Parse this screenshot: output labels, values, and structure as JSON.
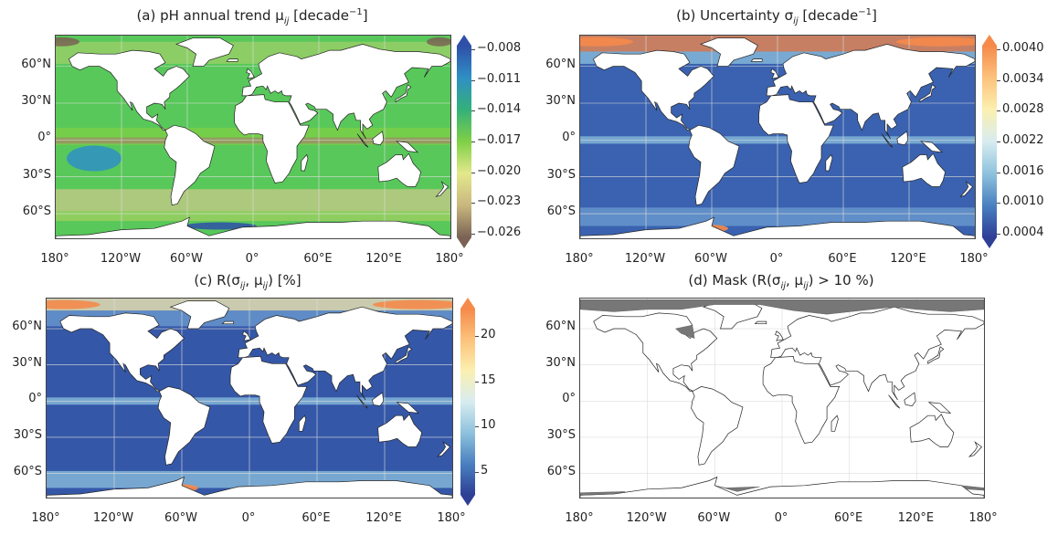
{
  "panels": [
    {
      "id": "a",
      "title": "(a) pH annual trend μ",
      "title_sub": "ij",
      "title_tail": " [decade",
      "title_sup": "−1",
      "title_end": "]",
      "colorbar": {
        "ticks": [
          "−0.008",
          "−0.011",
          "−0.014",
          "−0.017",
          "−0.020",
          "−0.023",
          "−0.026"
        ],
        "colors": [
          "#2f4fa8",
          "#2f8fc4",
          "#34b07a",
          "#7fd046",
          "#e3e88c",
          "#c9b77e",
          "#7a6354"
        ]
      },
      "ocean_color": "#58c85a"
    },
    {
      "id": "b",
      "title": "(b) Uncertainty σ",
      "title_sub": "ij",
      "title_tail": " [decade",
      "title_sup": "−1",
      "title_end": "]",
      "colorbar": {
        "ticks": [
          "0.0040",
          "0.0034",
          "0.0028",
          "0.0022",
          "0.0016",
          "0.0010",
          "0.0004"
        ],
        "colors": [
          "#f58a4a",
          "#fcc27b",
          "#fbf0b0",
          "#d8ecf0",
          "#8ec2dd",
          "#4a80c0",
          "#2e3f96"
        ]
      },
      "ocean_color": "#3a62b0"
    },
    {
      "id": "c",
      "title": "(c) R(σ",
      "title_sub": "ij",
      "title_tail": ", μ",
      "title_sub2": "ij",
      "title_end": ") [%]",
      "colorbar": {
        "ticks": [
          "20",
          "15",
          "10",
          "5"
        ],
        "colors": [
          "#f58a4a",
          "#fcc27b",
          "#fbf0b0",
          "#d8ecf0",
          "#8ec2dd",
          "#4a80c0",
          "#2e3f96"
        ]
      },
      "ocean_color": "#3557a8"
    },
    {
      "id": "d",
      "title": "(d) Mask (R(σ",
      "title_sub": "ij",
      "title_tail": ", μ",
      "title_sub2": "ij",
      "title_end": ") > 10 %)",
      "ocean_color": "#ffffff"
    }
  ],
  "lat_labels": [
    "60°N",
    "30°N",
    "0°",
    "30°S",
    "60°S"
  ],
  "lon_labels": [
    "180°",
    "120°W",
    "60°W",
    "0°",
    "60°E",
    "120°E",
    "180°"
  ]
}
